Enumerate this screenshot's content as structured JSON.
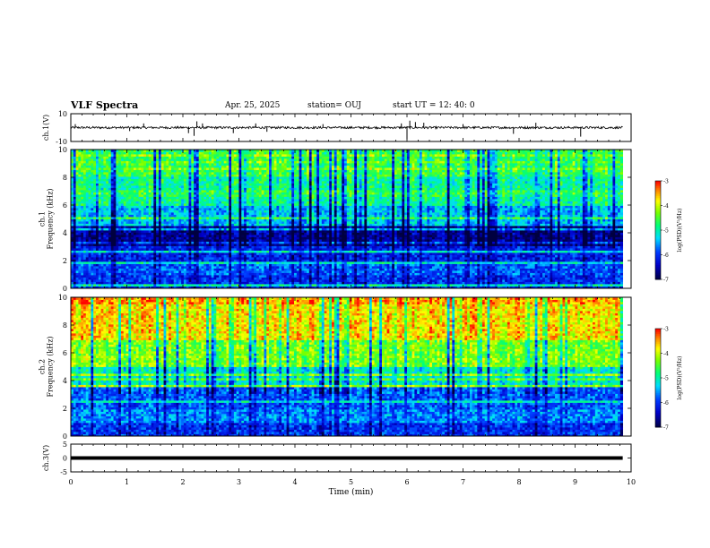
{
  "header": {
    "title": "VLF Spectra",
    "date": "Apr. 25, 2025",
    "station": "station= OUJ",
    "start": "start  UT =   12: 40: 0"
  },
  "chart_data": [
    {
      "type": "line",
      "name": "ch1-waveform",
      "ylabel": "ch.1(V)",
      "ylim": [
        -10,
        10
      ],
      "y_ticks": [
        "10",
        "-10"
      ],
      "baseline": 0,
      "spikes": [
        {
          "x": 0.08,
          "y": 2.5
        },
        {
          "x": 1.05,
          "y": -2.5
        },
        {
          "x": 1.3,
          "y": 3.0
        },
        {
          "x": 2.1,
          "y": -4.0
        },
        {
          "x": 2.2,
          "y": -6.0
        },
        {
          "x": 2.25,
          "y": 4.5
        },
        {
          "x": 2.35,
          "y": 3.0
        },
        {
          "x": 2.9,
          "y": -4.0
        },
        {
          "x": 3.3,
          "y": 3.0
        },
        {
          "x": 3.5,
          "y": -3.0
        },
        {
          "x": 4.5,
          "y": 2.5
        },
        {
          "x": 5.9,
          "y": 3.0
        },
        {
          "x": 6.0,
          "y": -8.5
        },
        {
          "x": 6.05,
          "y": 5.0
        },
        {
          "x": 6.15,
          "y": 4.0
        },
        {
          "x": 6.3,
          "y": 3.5
        },
        {
          "x": 7.0,
          "y": 2.5
        },
        {
          "x": 7.9,
          "y": -4.5
        },
        {
          "x": 8.3,
          "y": 3.5
        },
        {
          "x": 9.1,
          "y": -6.5
        }
      ]
    },
    {
      "type": "heatmap",
      "name": "ch1-spectrogram",
      "ylabel": "ch.1\nFrequency (kHz)",
      "xlim": [
        0,
        10
      ],
      "ylim": [
        0,
        10
      ],
      "y_ticks": [
        "0",
        "2",
        "4",
        "6",
        "8",
        "10"
      ],
      "colorbar": {
        "label": "log(PSD)(V²/Hz)",
        "min": -7,
        "max": -3,
        "ticks": [
          "-3",
          "-4",
          "-5",
          "-6",
          "-7"
        ]
      },
      "data_end_min": 9.85,
      "band_levels_log_psd": [
        {
          "f0": 0,
          "f1": 1,
          "v": -6.0
        },
        {
          "f0": 1,
          "f1": 2,
          "v": -5.8
        },
        {
          "f0": 2,
          "f1": 3,
          "v": -6.1
        },
        {
          "f0": 3,
          "f1": 4.5,
          "v": -6.6
        },
        {
          "f0": 4.5,
          "f1": 6,
          "v": -5.4
        },
        {
          "f0": 6,
          "f1": 8,
          "v": -4.9
        },
        {
          "f0": 8,
          "f1": 10,
          "v": -4.6
        }
      ]
    },
    {
      "type": "heatmap",
      "name": "ch2-spectrogram",
      "ylabel": "ch.2\nFrequency (kHz)",
      "xlim": [
        0,
        10
      ],
      "ylim": [
        0,
        10
      ],
      "y_ticks": [
        "0",
        "2",
        "4",
        "6",
        "8",
        "10"
      ],
      "colorbar": {
        "label": "log(PSD)(V²/Hz)",
        "min": -7,
        "max": -3,
        "ticks": [
          "-3",
          "-4",
          "-5",
          "-6",
          "-7"
        ]
      },
      "data_end_min": 9.85,
      "band_levels_log_psd": [
        {
          "f0": 0,
          "f1": 1,
          "v": -6.0
        },
        {
          "f0": 1,
          "f1": 2,
          "v": -5.6
        },
        {
          "f0": 2,
          "f1": 3.5,
          "v": -5.8
        },
        {
          "f0": 3.5,
          "f1": 5,
          "v": -5.1
        },
        {
          "f0": 5,
          "f1": 7,
          "v": -4.3
        },
        {
          "f0": 7,
          "f1": 10,
          "v": -3.7
        }
      ]
    },
    {
      "type": "line",
      "name": "ch3-waveform",
      "ylabel": "ch.3(V)",
      "xlabel": "Time (min)",
      "ylim": [
        -5,
        5
      ],
      "y_ticks": [
        "5",
        "0",
        "-5"
      ],
      "x_ticks": [
        "0",
        "1",
        "2",
        "3",
        "4",
        "5",
        "6",
        "7",
        "8",
        "9",
        "10"
      ],
      "level": 0,
      "data_end_min": 9.85
    }
  ],
  "colors": {
    "line": "#000000",
    "colormap": [
      "#000040",
      "#0000ff",
      "#00ffff",
      "#00ff00",
      "#ffff00",
      "#ff0000"
    ]
  }
}
